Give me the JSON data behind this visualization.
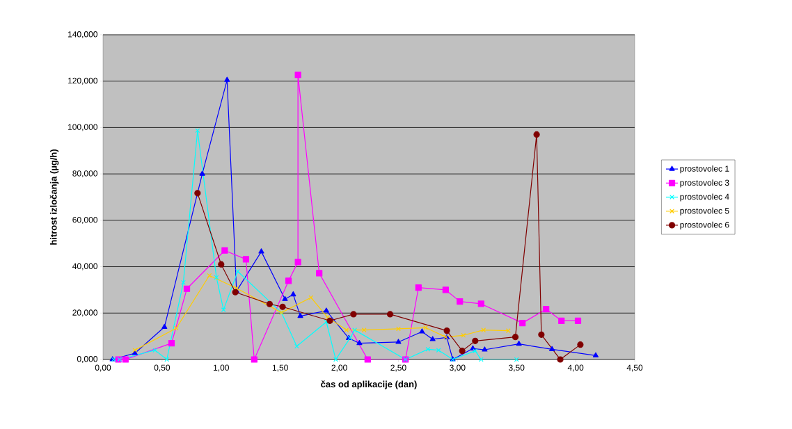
{
  "chart_data": {
    "type": "line",
    "xlabel": "čas od aplikacije (dan)",
    "ylabel": "hitrost izločanja (µg/h)",
    "xlim": [
      0,
      4.5
    ],
    "ylim": [
      0,
      140
    ],
    "xticks": [
      {
        "value": 0,
        "label": "0,00"
      },
      {
        "value": 0.5,
        "label": "0,50"
      },
      {
        "value": 1,
        "label": "1,00"
      },
      {
        "value": 1.5,
        "label": "1,50"
      },
      {
        "value": 2,
        "label": "2,00"
      },
      {
        "value": 2.5,
        "label": "2,50"
      },
      {
        "value": 3,
        "label": "3,00"
      },
      {
        "value": 3.5,
        "label": "3,50"
      },
      {
        "value": 4,
        "label": "4,00"
      },
      {
        "value": 4.5,
        "label": "4,50"
      }
    ],
    "yticks": [
      {
        "value": 0,
        "label": "0,000"
      },
      {
        "value": 20,
        "label": "20,000"
      },
      {
        "value": 40,
        "label": "40,000"
      },
      {
        "value": 60,
        "label": "60,000"
      },
      {
        "value": 80,
        "label": "80,000"
      },
      {
        "value": 100,
        "label": "100,000"
      },
      {
        "value": 120,
        "label": "120,000"
      },
      {
        "value": 140,
        "label": "140,000"
      }
    ],
    "grid": "y",
    "legend": "right",
    "line_style": "solid",
    "series": [
      {
        "name": "prostovolec 1",
        "color": "#0000ff",
        "marker": "triangle",
        "x": [
          0.08,
          0.27,
          0.52,
          0.84,
          1.05,
          1.13,
          1.34,
          1.54,
          1.61,
          1.67,
          1.89,
          2.08,
          2.17,
          2.5,
          2.7,
          2.79,
          2.91,
          2.96,
          3.13,
          3.23,
          3.52,
          3.8,
          4.17
        ],
        "values": [
          0,
          2.7,
          14,
          80,
          120.5,
          29.5,
          46.5,
          26,
          28,
          18.7,
          21,
          9.2,
          7,
          7.5,
          12,
          8.7,
          9.5,
          0,
          4.7,
          4.2,
          6.7,
          4.4,
          1.7
        ]
      },
      {
        "name": "prostovolec 3",
        "color": "#ff00ff",
        "marker": "square",
        "x": [
          0.13,
          0.19,
          0.58,
          0.71,
          1.03,
          1.21,
          1.28,
          1.57,
          1.65,
          1.65,
          1.83,
          2.24,
          2.56,
          2.67,
          2.9,
          3.02,
          3.2,
          3.55,
          3.75,
          3.88,
          4.02
        ],
        "values": [
          0,
          0,
          7,
          30.5,
          47,
          43.2,
          0,
          33.9,
          42,
          122.7,
          37.2,
          0,
          0,
          31,
          30,
          25,
          24,
          15.7,
          21.7,
          16.7,
          16.7
        ]
      },
      {
        "name": "prostovolec 4",
        "color": "#00ffff",
        "marker": "cross",
        "x": [
          0.09,
          0.14,
          0.44,
          0.54,
          0.68,
          0.8,
          0.96,
          1.02,
          1.14,
          1.51,
          1.64,
          1.89,
          1.97,
          2.09,
          2.13,
          2.56,
          2.75,
          2.84,
          2.96,
          3.15,
          3.2,
          3.5
        ],
        "values": [
          0,
          0,
          4,
          0,
          33.2,
          98.7,
          35.4,
          21.4,
          38,
          20.2,
          5.7,
          16.2,
          0,
          9.2,
          12.7,
          0,
          4.4,
          4,
          0,
          3.7,
          0,
          0
        ]
      },
      {
        "name": "prostovolec 5",
        "color": "#ffcc00",
        "marker": "cross",
        "x": [
          0.27,
          0.62,
          0.9,
          1.13,
          1.51,
          1.76,
          1.9,
          2.06,
          2.21,
          2.5,
          2.73,
          2.9,
          3.05,
          3.22,
          3.43
        ],
        "values": [
          4,
          13.5,
          36.2,
          30.7,
          20.2,
          26.7,
          18.2,
          12.7,
          12.7,
          13.2,
          13.7,
          9.7,
          10.4,
          12.7,
          12.4
        ]
      },
      {
        "name": "prostovolec 6",
        "color": "#800000",
        "marker": "circle",
        "x": [
          0.8,
          1.0,
          1.12,
          1.41,
          1.52,
          1.92,
          2.12,
          2.43,
          2.91,
          3.04,
          3.15,
          3.49,
          3.67,
          3.71,
          3.87,
          4.04
        ],
        "values": [
          71.7,
          41,
          29,
          23.9,
          22.7,
          16.7,
          19.5,
          19.5,
          12.4,
          3.7,
          8,
          9.7,
          97,
          10.7,
          0,
          6.4
        ]
      }
    ]
  }
}
